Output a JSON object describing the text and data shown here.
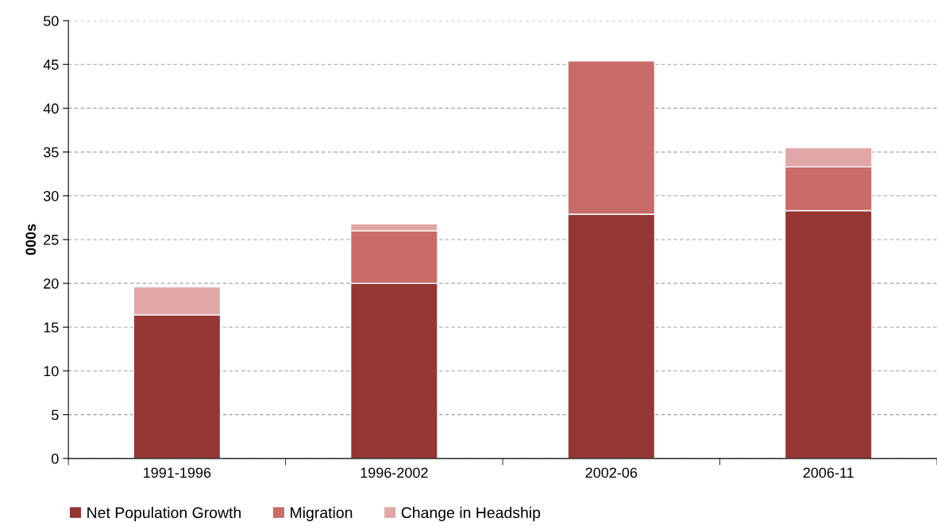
{
  "chart_data": {
    "type": "bar",
    "stacked": true,
    "ylabel": "000s",
    "categories": [
      "1991-1996",
      "1996-2002",
      "2002-06",
      "2006-11"
    ],
    "series": [
      {
        "name": "Net Population Growth",
        "color": "#943634",
        "values": [
          16.4,
          20.0,
          27.9,
          28.3
        ]
      },
      {
        "name": "Migration",
        "color": "#c96b68",
        "values": [
          null,
          6.0,
          17.5,
          5.0
        ]
      },
      {
        "name": "Change in Headship",
        "color": "#e0a7a6",
        "values": [
          3.2,
          0.8,
          null,
          2.2
        ]
      }
    ],
    "ylim": [
      0,
      50
    ],
    "yticks": [
      0,
      5,
      10,
      15,
      20,
      25,
      30,
      35,
      40,
      45,
      50
    ],
    "grid": "y",
    "legend": "bottom left"
  }
}
